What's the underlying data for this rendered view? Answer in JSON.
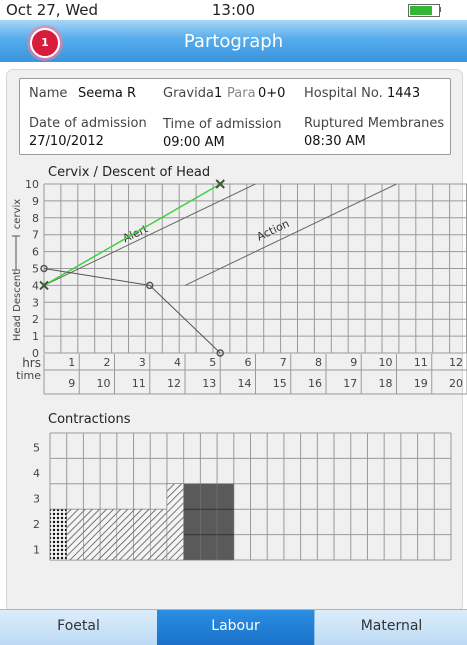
{
  "status_bar": {
    "date": "Oct 27, Wed",
    "time": "13:00",
    "battery_level": 0.8
  },
  "header": {
    "title": "Partograph",
    "badge_count": "1"
  },
  "patient": {
    "name_label": "Name",
    "name": "Seema R",
    "gravida_label": "Gravida",
    "gravida": "1",
    "para_label": "Para",
    "para": "0+0",
    "hospital_label": "Hospital No.",
    "hospital_no": "1443",
    "admission_date_label": "Date of admission",
    "admission_date": "27/10/2012",
    "admission_time_label": "Time of admission",
    "admission_time": "09:00 AM",
    "ruptured_label": "Ruptured Membranes",
    "ruptured_time": "08:30 AM"
  },
  "cervix_chart": {
    "title": "Cervix / Descent of Head",
    "y_ticks": [
      "0",
      "1",
      "2",
      "3",
      "4",
      "5",
      "6",
      "7",
      "8",
      "9",
      "10"
    ],
    "hrs_label": "hrs",
    "hrs_ticks": [
      "1",
      "2",
      "3",
      "4",
      "5",
      "6",
      "7",
      "8",
      "9",
      "10",
      "11",
      "12"
    ],
    "time_label": "time",
    "time_ticks": [
      "9",
      "10",
      "11",
      "12",
      "13",
      "14",
      "15",
      "16",
      "17",
      "18",
      "19",
      "20"
    ],
    "y_axis_cervix": "cervix",
    "y_axis_head": "Head Descent",
    "alert_label": "Alert",
    "action_label": "Action",
    "cervix_points": [
      {
        "hr": 0,
        "value": 4
      },
      {
        "hr": 5,
        "value": 10
      }
    ],
    "descent_points": [
      {
        "hr": 0,
        "value": 5
      },
      {
        "hr": 3,
        "value": 4
      },
      {
        "hr": 5,
        "value": 0
      }
    ],
    "alert_line": {
      "from": [
        0,
        4
      ],
      "to": [
        6,
        10
      ]
    },
    "action_line": {
      "from": [
        4,
        4
      ],
      "to": [
        10,
        10
      ]
    },
    "colors": {
      "cervix": "#3fd23f",
      "descent": "#555555",
      "marker": "#3a5a3a"
    }
  },
  "contractions": {
    "title": "Contractions",
    "y_ticks": [
      "1",
      "2",
      "3",
      "4",
      "5"
    ],
    "columns": 24,
    "bars": [
      {
        "count": 2,
        "pattern": "dots"
      },
      {
        "count": 2,
        "pattern": "diag"
      },
      {
        "count": 2,
        "pattern": "diag"
      },
      {
        "count": 2,
        "pattern": "diag"
      },
      {
        "count": 2,
        "pattern": "diag"
      },
      {
        "count": 2,
        "pattern": "diag"
      },
      {
        "count": 2,
        "pattern": "diag"
      },
      {
        "count": 3,
        "pattern": "diag"
      },
      {
        "count": 3,
        "pattern": "solid"
      },
      {
        "count": 3,
        "pattern": "solid"
      },
      {
        "count": 3,
        "pattern": "solid"
      }
    ]
  },
  "tabs": [
    {
      "label": "Foetal",
      "active": false
    },
    {
      "label": "Labour",
      "active": true
    },
    {
      "label": "Maternal",
      "active": false
    }
  ]
}
